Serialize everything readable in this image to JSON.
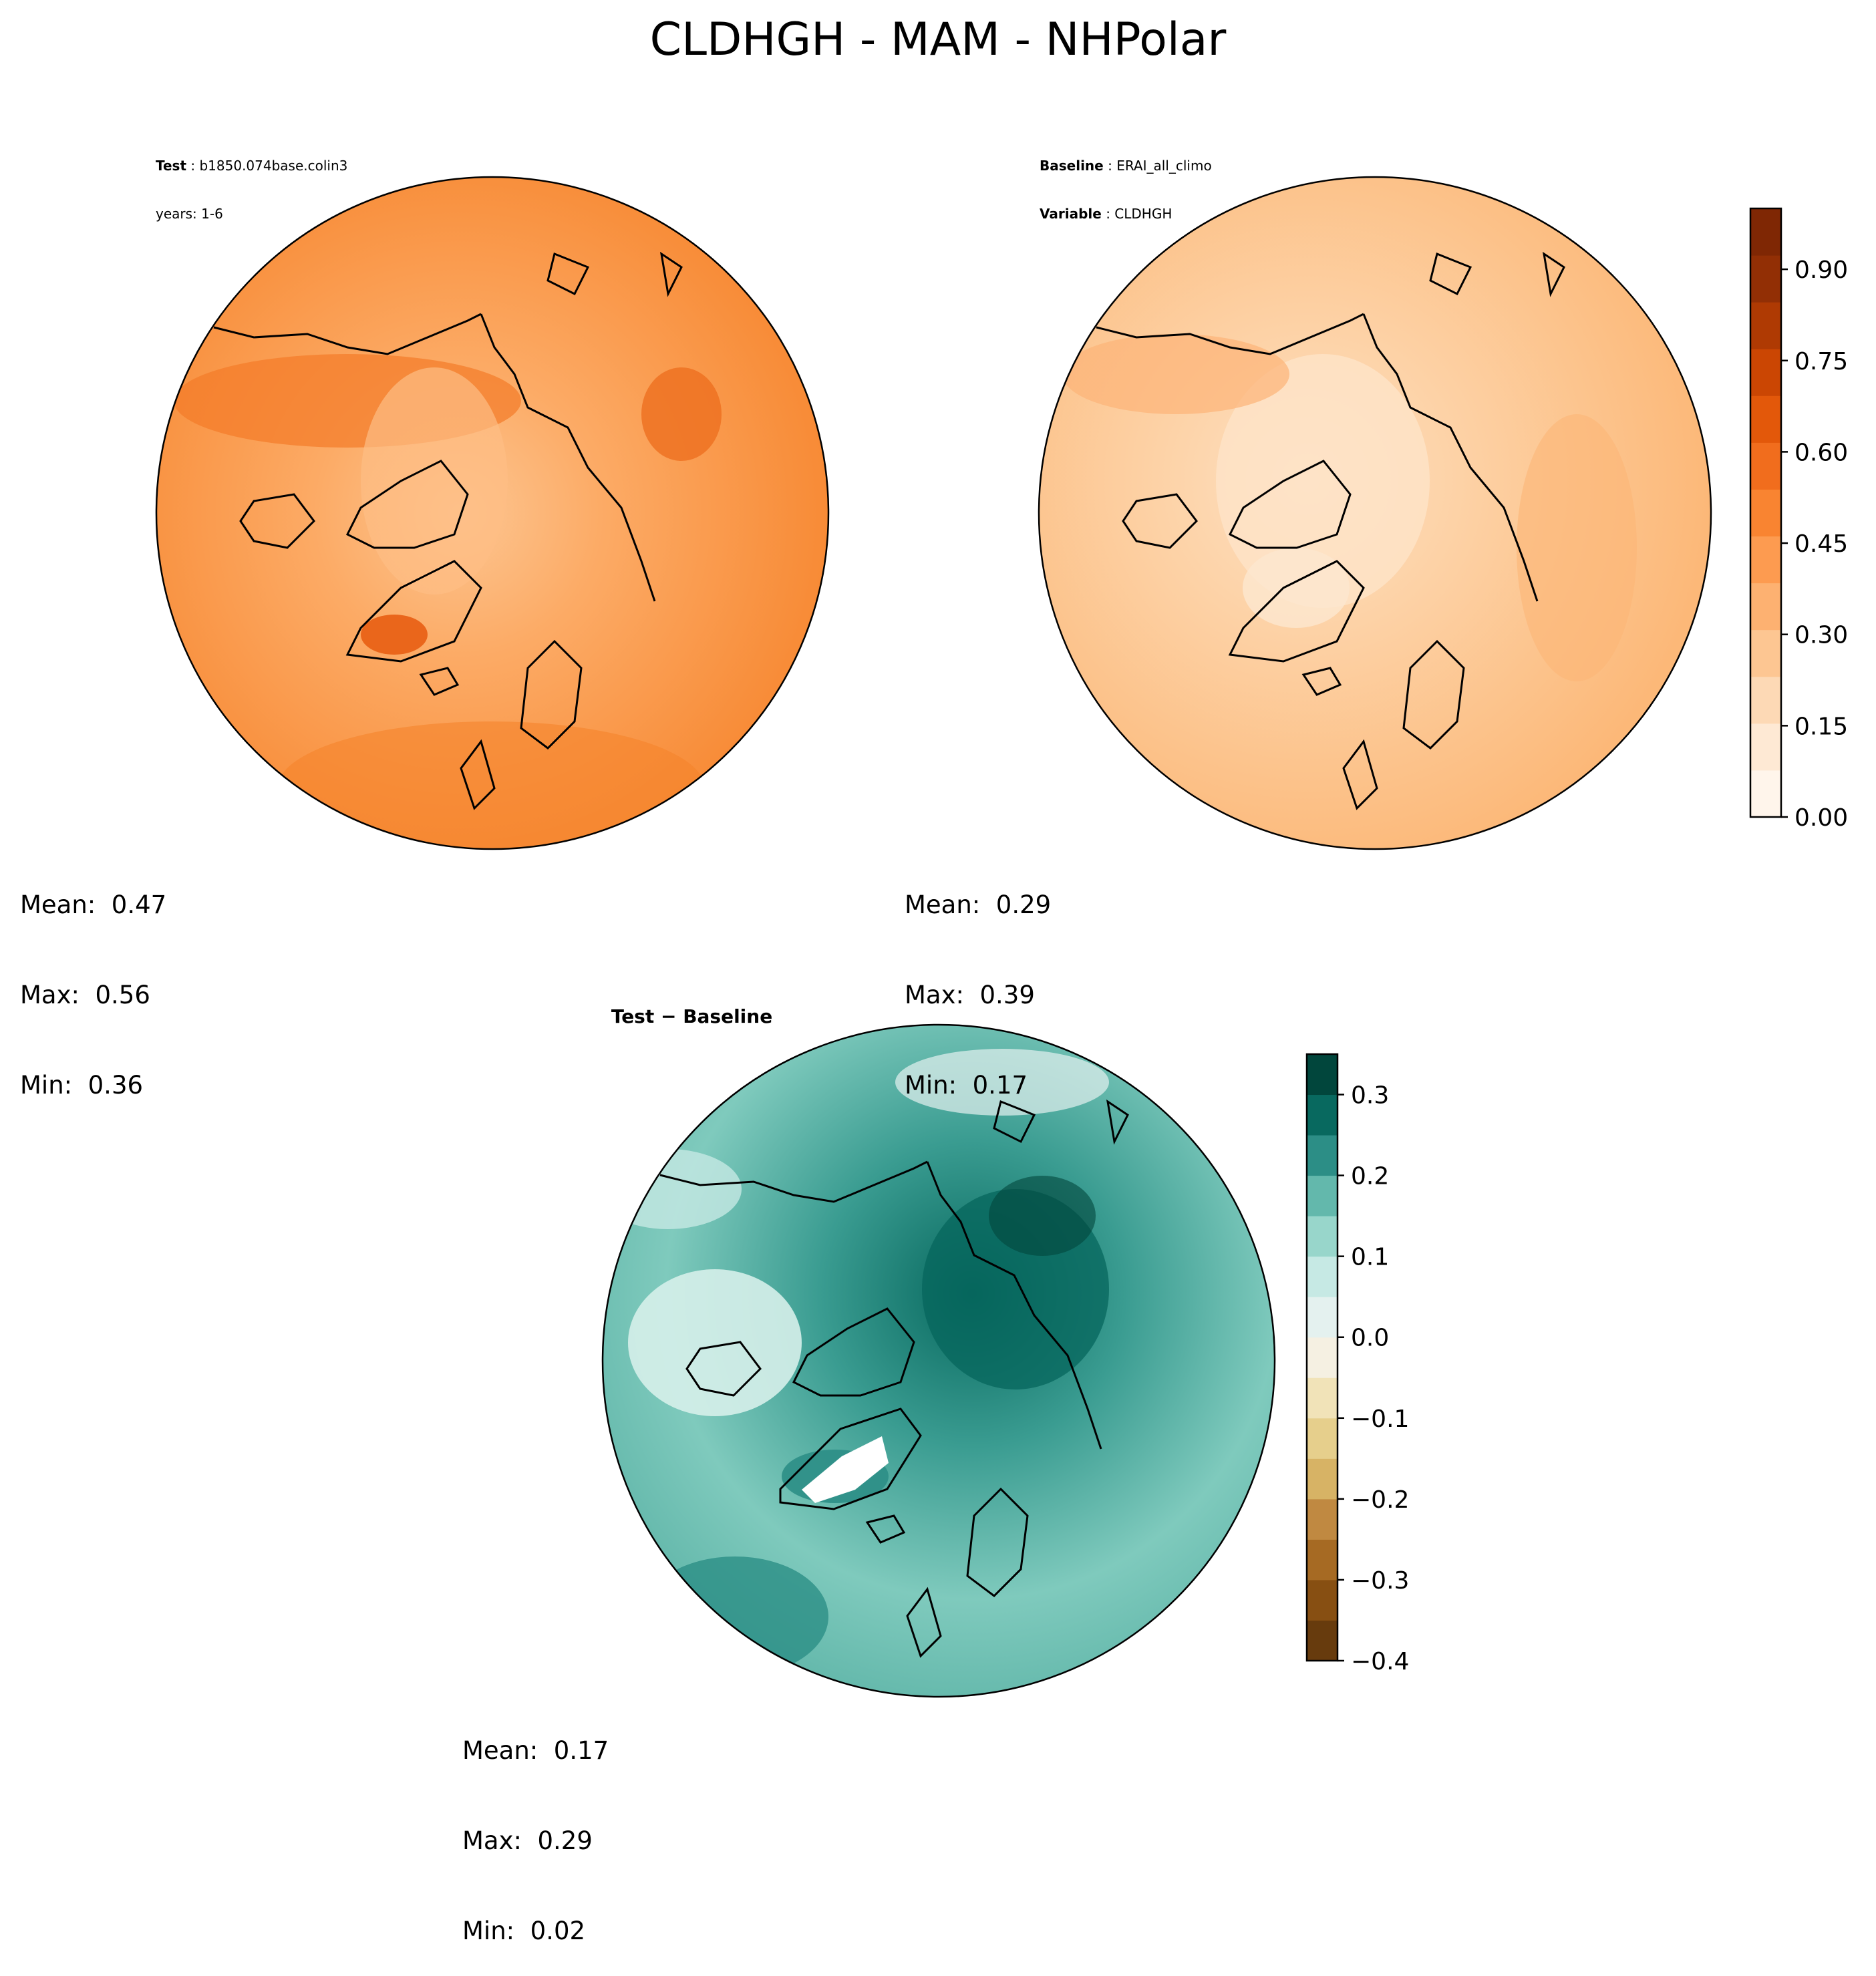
{
  "chart_data": {
    "type": "polar-contour-map",
    "title": "CLDHGH - MAM - NHPolar",
    "panels": [
      {
        "name": "test",
        "header": [
          {
            "key": "Test",
            "value": "b1850.074base.colin3"
          },
          {
            "key": "",
            "value": "years: 1-6"
          }
        ],
        "stats": {
          "mean": "0.47",
          "max": "0.56",
          "min": "0.36"
        },
        "stats_labels": {
          "mean": "Mean:  0.47",
          "max": "Max:  0.56",
          "min": "Min:  0.36"
        }
      },
      {
        "name": "baseline",
        "header": [
          {
            "key": "Baseline",
            "value": "ERAI_all_climo"
          },
          {
            "key": "Variable",
            "value": "CLDHGH"
          }
        ],
        "stats": {
          "mean": "0.29",
          "max": "0.39",
          "min": "0.17"
        },
        "stats_labels": {
          "mean": "Mean:  0.29",
          "max": "Max:  0.39",
          "min": "Min:  0.17"
        }
      },
      {
        "name": "difference",
        "header": [
          {
            "key": "Test − Baseline",
            "value": ""
          }
        ],
        "stats": {
          "mean": "0.17",
          "max": "0.29",
          "min": "0.02"
        },
        "stats_labels": {
          "mean": "Mean:  0.17",
          "max": "Max:  0.29",
          "min": "Min:  0.02"
        }
      }
    ],
    "colorbars": [
      {
        "name": "main",
        "range": [
          0,
          1
        ],
        "ticks": [
          0.0,
          0.15,
          0.3,
          0.45,
          0.6,
          0.75,
          0.9
        ],
        "tick_labels": [
          "0.00",
          "0.15",
          "0.30",
          "0.45",
          "0.60",
          "0.75",
          "0.90"
        ],
        "colors": [
          "#fff5eb",
          "#fee9d4",
          "#fdd9b5",
          "#fdc692",
          "#fdb171",
          "#fd9b50",
          "#f98431",
          "#f16d1d",
          "#e3580a",
          "#cb4603",
          "#af3a03",
          "#922f05",
          "#7f2704"
        ]
      },
      {
        "name": "diff",
        "range": [
          -0.4,
          0.35
        ],
        "ticks": [
          0.3,
          0.2,
          0.1,
          0.0,
          -0.1,
          -0.2,
          -0.3,
          -0.4
        ],
        "tick_labels": [
          "0.3",
          "0.2",
          "0.1",
          "0.0",
          "−0.1",
          "−0.2",
          "−0.3",
          "−0.4"
        ],
        "colors": [
          "#673b0d",
          "#874f12",
          "#a66a23",
          "#c08941",
          "#d7b365",
          "#e6cf8c",
          "#f1e3b8",
          "#f5f0e2",
          "#e4f1ef",
          "#c6e9e4",
          "#98d6cb",
          "#63b8ac",
          "#2c8e86",
          "#08695f",
          "#01463c"
        ]
      }
    ]
  }
}
